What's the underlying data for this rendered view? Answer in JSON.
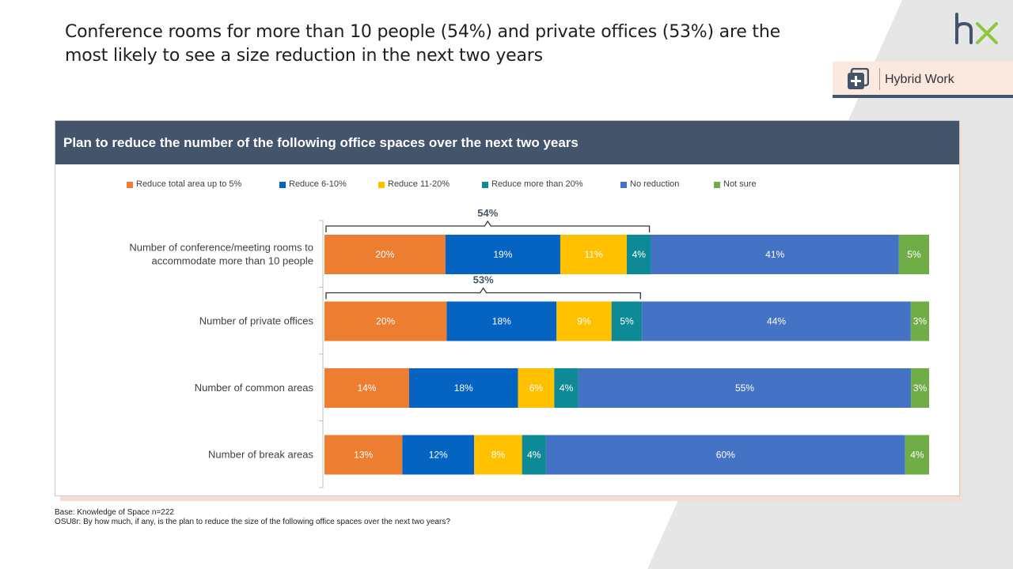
{
  "headline": "Conference rooms for more than 10 people (54%) and private offices (53%) are the most likely to see a size reduction in the next two years",
  "logo": {
    "text": "hx",
    "color_h": "#44546a",
    "color_x": "#8dc63f"
  },
  "tag": {
    "label": "Hybrid Work",
    "icon": "plus-square-icon"
  },
  "colors": {
    "header": "#44546a",
    "accent": "#f6ddd1"
  },
  "chart_data": {
    "type": "bar",
    "orientation": "horizontal",
    "stacked": true,
    "percent_of_total": true,
    "title": "Plan to reduce the number of the following office spaces over the next two years",
    "legend_position": "top",
    "categories": [
      "Number of conference/meeting rooms to accommodate more than 10 people",
      "Number of private offices",
      "Number of common areas",
      "Number of break areas"
    ],
    "category_lines": [
      [
        "Number of conference/meeting rooms to",
        "accommodate more than 10 people"
      ],
      [
        "Number of private offices"
      ],
      [
        "Number of common areas"
      ],
      [
        "Number of break areas"
      ]
    ],
    "series": [
      {
        "name": "Reduce total area up to 5%",
        "color": "#ed7d31",
        "values": [
          20,
          20,
          14,
          13
        ]
      },
      {
        "name": "Reduce 6-10%",
        "color": "#0563c1",
        "values": [
          19,
          18,
          18,
          12
        ]
      },
      {
        "name": "Reduce 11-20%",
        "color": "#ffc000",
        "values": [
          11,
          9,
          6,
          8
        ]
      },
      {
        "name": "Reduce more than 20%",
        "color": "#0e8a96",
        "values": [
          4,
          5,
          4,
          4
        ]
      },
      {
        "name": "No reduction",
        "color": "#4472c4",
        "values": [
          41,
          44,
          55,
          60
        ]
      },
      {
        "name": "Not sure",
        "color": "#70ad47",
        "values": [
          5,
          3,
          3,
          4
        ]
      }
    ],
    "brackets": [
      {
        "category_index": 0,
        "label": "54%",
        "spans_series": 4
      },
      {
        "category_index": 1,
        "label": "53%",
        "spans_series": 4
      }
    ]
  },
  "footnotes": [
    "Base: Knowledge of Space n=222",
    "OSU8r: By how much, if any, is the plan to reduce the size of the following office spaces over the next two years?"
  ]
}
